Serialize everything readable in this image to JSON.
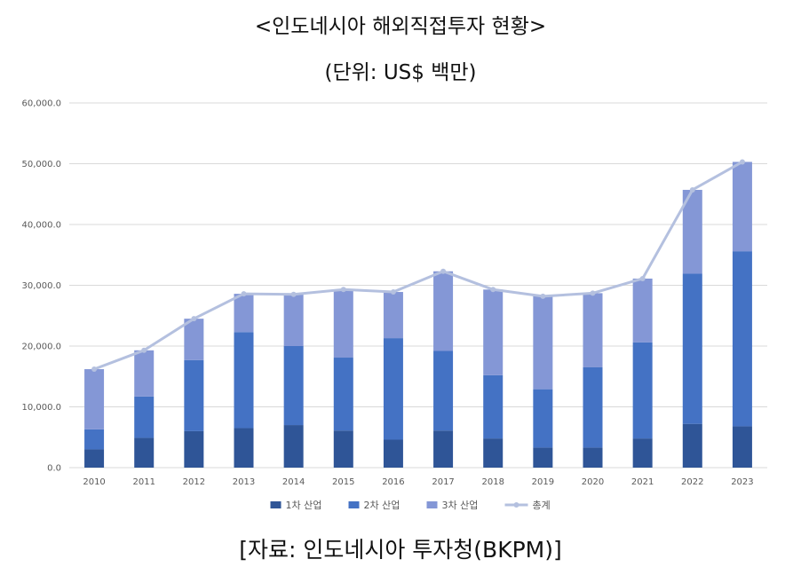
{
  "title": "<인도네시아 해외직접투자 현황>",
  "subtitle": "(단위: US$ 백만)",
  "source": "[자료: 인도네시아 투자청(BKPM)]",
  "colors": {
    "series1": "#2f5597",
    "series2": "#4472c4",
    "series3": "#8497d6",
    "total": "#b4c0df",
    "grid": "#d9d9d9"
  },
  "chart_data": {
    "type": "bar",
    "stacked": true,
    "categories": [
      "2010",
      "2011",
      "2012",
      "2013",
      "2014",
      "2015",
      "2016",
      "2017",
      "2018",
      "2019",
      "2020",
      "2021",
      "2022",
      "2023"
    ],
    "ylim": [
      0,
      60000
    ],
    "yticks": [
      "0.0",
      "10,000.0",
      "20,000.0",
      "30,000.0",
      "40,000.0",
      "50,000.0",
      "60,000.0"
    ],
    "grid": true,
    "legend_position": "bottom",
    "series": [
      {
        "name": "1차 산업",
        "type": "bar",
        "values": [
          3000,
          4900,
          6000,
          6500,
          7000,
          6100,
          4600,
          6100,
          4800,
          3300,
          3300,
          4800,
          7200,
          6800
        ]
      },
      {
        "name": "2차 산업",
        "type": "bar",
        "values": [
          3300,
          6800,
          11700,
          15800,
          13000,
          12000,
          16700,
          13100,
          10400,
          9600,
          13200,
          15800,
          24700,
          28800
        ]
      },
      {
        "name": "3차 산업",
        "type": "bar",
        "values": [
          9900,
          7600,
          6800,
          6300,
          8500,
          11200,
          7600,
          13100,
          14100,
          15300,
          12200,
          10500,
          13800,
          14700
        ]
      },
      {
        "name": "총계",
        "type": "line",
        "values": [
          16200,
          19300,
          24500,
          28600,
          28500,
          29300,
          28900,
          32300,
          29300,
          28200,
          28700,
          31100,
          45700,
          50300
        ]
      }
    ]
  }
}
